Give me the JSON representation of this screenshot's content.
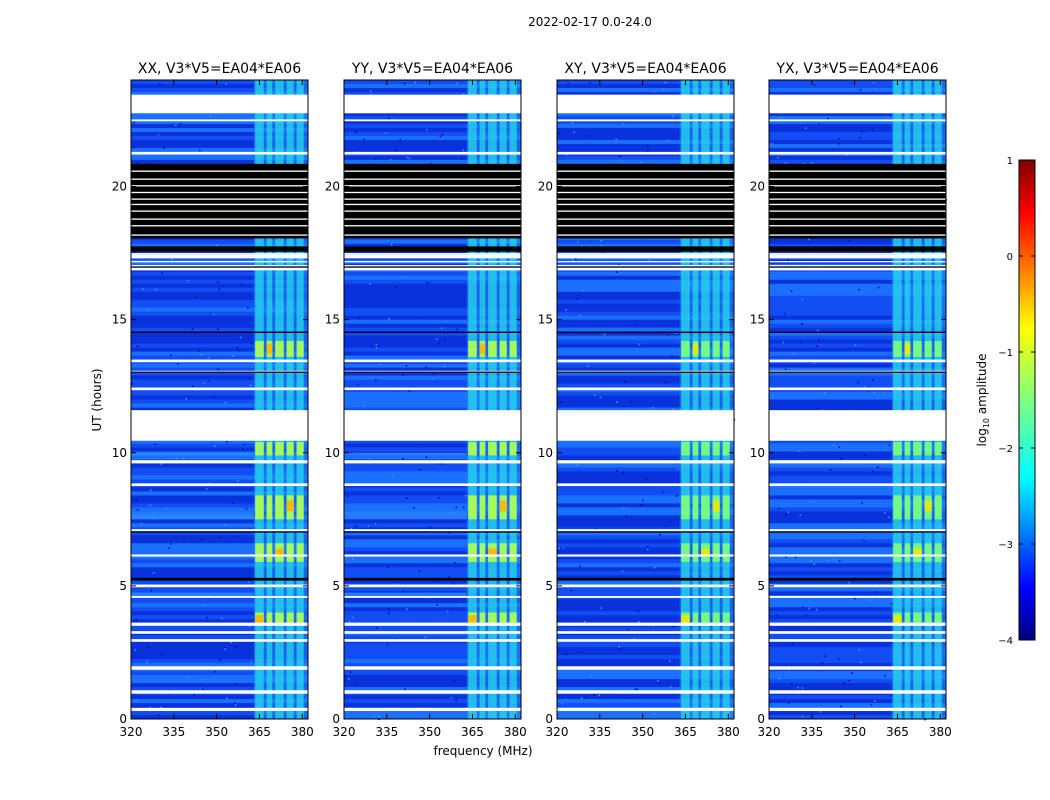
{
  "chart_data": {
    "type": "heatmap",
    "title": "2022-02-17 0.0-24.0",
    "xlabel": "frequency (MHz)",
    "ylabel": "UT (hours)",
    "xlim": [
      320,
      382
    ],
    "ylim": [
      0,
      24
    ],
    "xticks": [
      320,
      335,
      350,
      365,
      380
    ],
    "yticks": [
      0,
      5,
      10,
      15,
      20
    ],
    "panels": [
      {
        "title": "XX, V3*V5=EA04*EA06"
      },
      {
        "title": "YY, V3*V5=EA04*EA06"
      },
      {
        "title": "XY, V3*V5=EA04*EA06"
      },
      {
        "title": "YX, V3*V5=EA04*EA06"
      }
    ],
    "colorbar": {
      "label": "log10 amplitude",
      "label_base": "log",
      "label_sub": "10",
      "label_rest": " amplitude",
      "range": [
        -4,
        1
      ],
      "ticks": [
        1,
        0,
        -1,
        -2,
        -3,
        -4
      ],
      "colormap": "jet"
    },
    "flagged_white_ut": [
      [
        0.3,
        0.42
      ],
      [
        0.95,
        1.08
      ],
      [
        1.85,
        1.98
      ],
      [
        2.9,
        3.0
      ],
      [
        3.2,
        3.3
      ],
      [
        3.5,
        3.62
      ],
      [
        4.55,
        4.62
      ],
      [
        4.95,
        5.05
      ],
      [
        6.1,
        6.18
      ],
      [
        7.05,
        7.13
      ],
      [
        8.75,
        8.85
      ],
      [
        9.6,
        9.72
      ],
      [
        10.45,
        11.6
      ],
      [
        12.35,
        12.45
      ],
      [
        13.0,
        13.08
      ],
      [
        13.4,
        13.5
      ],
      [
        16.85,
        17.05
      ],
      [
        17.3,
        17.45
      ],
      [
        21.2,
        21.3
      ],
      [
        22.45,
        22.52
      ],
      [
        22.75,
        23.45
      ]
    ],
    "flagged_black_ut": [
      [
        18.05,
        20.85
      ],
      [
        17.55,
        17.75
      ],
      [
        16.95,
        17.0
      ],
      [
        5.2,
        5.3
      ],
      [
        7.0,
        7.05
      ],
      [
        13.0,
        13.05
      ],
      [
        14.5,
        14.55
      ]
    ],
    "rfi_band_mhz": [
      363,
      382
    ],
    "rfi_columns_mhz": [
      [
        363.5,
        366.5
      ],
      [
        367.5,
        369.5
      ],
      [
        370.5,
        373.5
      ],
      [
        374.5,
        377
      ],
      [
        378,
        380.5
      ]
    ],
    "rfi_hot_ut": [
      [
        3.5,
        4.0
      ],
      [
        5.9,
        6.6
      ],
      [
        7.5,
        8.4
      ],
      [
        9.9,
        10.4
      ],
      [
        13.6,
        14.2
      ]
    ],
    "cross_striations_ut": [
      [
        4.6,
        4.75
      ],
      [
        7.5,
        7.8
      ],
      [
        9.9,
        10.0
      ]
    ]
  }
}
